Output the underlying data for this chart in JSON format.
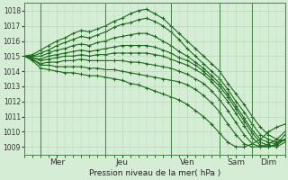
{
  "bg_color": "#d4edd4",
  "grid_color": "#b8d8b8",
  "line_color": "#1a6b1a",
  "xlabel": "Pression niveau de la mer( hPa )",
  "ylim": [
    1008.5,
    1018.5
  ],
  "yticks": [
    1009,
    1010,
    1011,
    1012,
    1013,
    1014,
    1015,
    1016,
    1017,
    1018
  ],
  "x_day_labels": [
    "Mer",
    "Jeu",
    "Ven",
    "Sam",
    "Dim"
  ],
  "x_day_positions": [
    24,
    72,
    120,
    156,
    180
  ],
  "x_sep_positions": [
    12,
    60,
    108,
    144,
    168
  ],
  "xlim": [
    0,
    192
  ],
  "series": [
    {
      "x": [
        0,
        6,
        12,
        18,
        24,
        30,
        36,
        42,
        48,
        54,
        60,
        66,
        72,
        78,
        84,
        90,
        96,
        102,
        108,
        114,
        120,
        126,
        132,
        138,
        144,
        150,
        156,
        162,
        168,
        174,
        180,
        186,
        192
      ],
      "y": [
        1015.0,
        1015.1,
        1015.4,
        1015.7,
        1016.0,
        1016.2,
        1016.5,
        1016.7,
        1016.6,
        1016.8,
        1017.0,
        1017.3,
        1017.5,
        1017.8,
        1018.0,
        1018.1,
        1017.8,
        1017.5,
        1017.0,
        1016.5,
        1016.0,
        1015.5,
        1015.0,
        1014.5,
        1014.0,
        1013.2,
        1012.5,
        1011.8,
        1011.0,
        1010.3,
        1009.8,
        1009.5,
        1009.4
      ]
    },
    {
      "x": [
        0,
        6,
        12,
        18,
        24,
        30,
        36,
        42,
        48,
        54,
        60,
        66,
        72,
        78,
        84,
        90,
        96,
        102,
        108,
        114,
        120,
        126,
        132,
        138,
        144,
        150,
        156,
        162,
        168,
        174,
        180,
        186,
        192
      ],
      "y": [
        1015.0,
        1015.0,
        1015.2,
        1015.4,
        1015.7,
        1015.9,
        1016.1,
        1016.3,
        1016.2,
        1016.4,
        1016.6,
        1016.9,
        1017.1,
        1017.2,
        1017.4,
        1017.5,
        1017.3,
        1017.0,
        1016.6,
        1016.1,
        1015.5,
        1015.0,
        1014.5,
        1014.0,
        1013.5,
        1012.8,
        1012.0,
        1011.3,
        1010.5,
        1009.8,
        1009.5,
        1009.3,
        1009.5
      ]
    },
    {
      "x": [
        0,
        6,
        12,
        18,
        24,
        30,
        36,
        42,
        48,
        54,
        60,
        66,
        72,
        78,
        84,
        90,
        96,
        102,
        108,
        114,
        120,
        126,
        132,
        138,
        144,
        150,
        156,
        162,
        168,
        174,
        180,
        186,
        192
      ],
      "y": [
        1015.0,
        1015.0,
        1015.0,
        1015.2,
        1015.4,
        1015.5,
        1015.7,
        1015.8,
        1015.7,
        1015.9,
        1016.0,
        1016.2,
        1016.3,
        1016.4,
        1016.5,
        1016.5,
        1016.3,
        1016.0,
        1015.7,
        1015.3,
        1015.0,
        1014.6,
        1014.2,
        1013.7,
        1013.2,
        1012.5,
        1011.7,
        1010.9,
        1010.1,
        1009.5,
        1009.3,
        1009.2,
        1009.5
      ]
    },
    {
      "x": [
        0,
        6,
        12,
        18,
        24,
        30,
        36,
        42,
        48,
        54,
        60,
        66,
        72,
        78,
        84,
        90,
        96,
        102,
        108,
        114,
        120,
        126,
        132,
        138,
        144,
        150,
        156,
        162,
        168,
        174,
        180,
        186,
        192
      ],
      "y": [
        1015.0,
        1014.9,
        1014.8,
        1015.0,
        1015.1,
        1015.2,
        1015.3,
        1015.4,
        1015.3,
        1015.4,
        1015.5,
        1015.6,
        1015.7,
        1015.7,
        1015.7,
        1015.7,
        1015.6,
        1015.4,
        1015.2,
        1014.9,
        1014.7,
        1014.4,
        1014.0,
        1013.5,
        1013.0,
        1012.3,
        1011.5,
        1010.7,
        1009.9,
        1009.3,
        1009.1,
        1009.0,
        1009.3
      ]
    },
    {
      "x": [
        0,
        6,
        12,
        18,
        24,
        30,
        36,
        42,
        48,
        54,
        60,
        66,
        72,
        78,
        84,
        90,
        96,
        102,
        108,
        114,
        120,
        126,
        132,
        138,
        144,
        150,
        156,
        162,
        168,
        174,
        180,
        186,
        192
      ],
      "y": [
        1015.0,
        1014.9,
        1014.7,
        1014.8,
        1014.9,
        1015.0,
        1015.0,
        1015.1,
        1015.0,
        1015.1,
        1015.1,
        1015.2,
        1015.2,
        1015.2,
        1015.2,
        1015.2,
        1015.1,
        1015.0,
        1014.8,
        1014.6,
        1014.4,
        1014.1,
        1013.8,
        1013.3,
        1012.7,
        1012.0,
        1011.2,
        1010.4,
        1009.6,
        1009.1,
        1009.0,
        1009.1,
        1009.5
      ]
    },
    {
      "x": [
        0,
        6,
        12,
        18,
        24,
        30,
        36,
        42,
        48,
        54,
        60,
        66,
        72,
        78,
        84,
        90,
        96,
        102,
        108,
        114,
        120,
        126,
        132,
        138,
        144,
        150,
        156,
        162,
        168,
        174,
        180,
        186,
        192
      ],
      "y": [
        1015.0,
        1014.8,
        1014.5,
        1014.6,
        1014.6,
        1014.7,
        1014.7,
        1014.8,
        1014.7,
        1014.7,
        1014.7,
        1014.7,
        1014.7,
        1014.6,
        1014.6,
        1014.5,
        1014.4,
        1014.3,
        1014.2,
        1014.0,
        1013.8,
        1013.5,
        1013.2,
        1012.7,
        1012.1,
        1011.4,
        1010.6,
        1009.8,
        1009.2,
        1009.0,
        1009.0,
        1009.2,
        1009.8
      ]
    },
    {
      "x": [
        0,
        6,
        12,
        18,
        24,
        30,
        36,
        42,
        48,
        54,
        60,
        66,
        72,
        78,
        84,
        90,
        96,
        102,
        108,
        114,
        120,
        126,
        132,
        138,
        144,
        150,
        156,
        162,
        168,
        174,
        180,
        186,
        192
      ],
      "y": [
        1015.0,
        1014.8,
        1014.4,
        1014.4,
        1014.3,
        1014.3,
        1014.3,
        1014.3,
        1014.2,
        1014.2,
        1014.1,
        1014.1,
        1014.0,
        1013.9,
        1013.8,
        1013.7,
        1013.6,
        1013.5,
        1013.4,
        1013.3,
        1013.1,
        1012.8,
        1012.4,
        1011.9,
        1011.3,
        1010.5,
        1009.8,
        1009.2,
        1009.0,
        1009.0,
        1009.2,
        1009.5,
        1010.0
      ]
    },
    {
      "x": [
        0,
        6,
        12,
        18,
        24,
        30,
        36,
        42,
        48,
        54,
        60,
        66,
        72,
        78,
        84,
        90,
        96,
        102,
        108,
        114,
        120,
        126,
        132,
        138,
        144,
        150,
        156,
        162,
        168,
        174,
        180,
        186,
        192
      ],
      "y": [
        1015.0,
        1014.7,
        1014.2,
        1014.1,
        1014.0,
        1013.9,
        1013.9,
        1013.8,
        1013.7,
        1013.7,
        1013.6,
        1013.5,
        1013.4,
        1013.2,
        1013.1,
        1012.9,
        1012.7,
        1012.5,
        1012.3,
        1012.1,
        1011.8,
        1011.4,
        1011.0,
        1010.5,
        1009.9,
        1009.3,
        1009.0,
        1009.0,
        1009.2,
        1009.5,
        1010.0,
        1010.3,
        1010.5
      ]
    }
  ]
}
